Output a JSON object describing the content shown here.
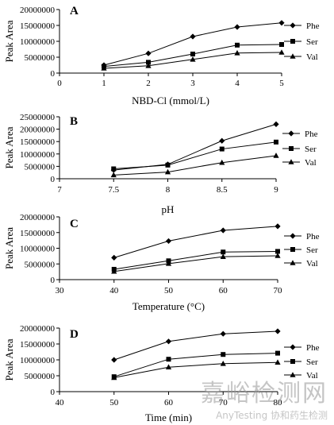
{
  "chart_data": [
    {
      "type": "line",
      "panel_label": "A",
      "xlabel": "NBD-Cl (mmol/L)",
      "ylabel": "Peak Area",
      "x": [
        1,
        2,
        3,
        4,
        5
      ],
      "xlim": [
        0,
        5
      ],
      "ylim": [
        0,
        20000000
      ],
      "xticks": [
        "0",
        "1",
        "2",
        "3",
        "4",
        "5"
      ],
      "yticks": [
        "0",
        "5000000",
        "10000000",
        "15000000",
        "20000000"
      ],
      "legend": "right",
      "series": [
        {
          "name": "Phe",
          "marker": "diamond",
          "values": [
            2500000,
            6200000,
            11500000,
            14500000,
            15800000
          ]
        },
        {
          "name": "Ser",
          "marker": "square",
          "values": [
            2100000,
            3400000,
            6000000,
            8800000,
            9000000
          ]
        },
        {
          "name": "Val",
          "marker": "triangle",
          "values": [
            1500000,
            2300000,
            4300000,
            6300000,
            6500000
          ]
        }
      ]
    },
    {
      "type": "line",
      "panel_label": "B",
      "xlabel": "pH",
      "ylabel": "Peak Area",
      "x": [
        7.5,
        8,
        8.5,
        9
      ],
      "xlim": [
        7,
        9
      ],
      "ylim": [
        0,
        25000000
      ],
      "xticks": [
        "7",
        "7.5",
        "8",
        "8.5",
        "9"
      ],
      "yticks": [
        "0",
        "5000000",
        "10000000",
        "15000000",
        "20000000",
        "25000000"
      ],
      "legend": "right",
      "series": [
        {
          "name": "Phe",
          "marker": "diamond",
          "values": [
            3500000,
            5800000,
            15300000,
            22000000
          ]
        },
        {
          "name": "Ser",
          "marker": "square",
          "values": [
            4000000,
            5500000,
            12000000,
            14800000
          ]
        },
        {
          "name": "Val",
          "marker": "triangle",
          "values": [
            1500000,
            2700000,
            6500000,
            9300000
          ]
        }
      ]
    },
    {
      "type": "line",
      "panel_label": "C",
      "xlabel": "Temperature (°C)",
      "ylabel": "Peak Area",
      "x": [
        40,
        50,
        60,
        70
      ],
      "xlim": [
        30,
        70
      ],
      "ylim": [
        0,
        20000000
      ],
      "xticks": [
        "30",
        "40",
        "50",
        "60",
        "70"
      ],
      "yticks": [
        "0",
        "5000000",
        "10000000",
        "15000000",
        "20000000"
      ],
      "legend": "right",
      "series": [
        {
          "name": "Phe",
          "marker": "diamond",
          "values": [
            7000000,
            12300000,
            15700000,
            17000000
          ]
        },
        {
          "name": "Ser",
          "marker": "square",
          "values": [
            3300000,
            6000000,
            8800000,
            9000000
          ]
        },
        {
          "name": "Val",
          "marker": "triangle",
          "values": [
            2600000,
            5100000,
            7300000,
            7600000
          ]
        }
      ]
    },
    {
      "type": "line",
      "panel_label": "D",
      "xlabel": "Time (min)",
      "ylabel": "Peak Area",
      "x": [
        50,
        60,
        70,
        80
      ],
      "xlim": [
        40,
        80
      ],
      "ylim": [
        0,
        20000000
      ],
      "xticks": [
        "40",
        "50",
        "60",
        "70",
        "80"
      ],
      "yticks": [
        "0",
        "5000000",
        "10000000",
        "15000000",
        "20000000"
      ],
      "legend": "right",
      "series": [
        {
          "name": "Phe",
          "marker": "diamond",
          "values": [
            10000000,
            15800000,
            18200000,
            19000000
          ]
        },
        {
          "name": "Ser",
          "marker": "square",
          "values": [
            4700000,
            10200000,
            11700000,
            12100000
          ]
        },
        {
          "name": "Val",
          "marker": "triangle",
          "values": [
            4400000,
            7700000,
            8800000,
            9200000
          ]
        }
      ]
    }
  ],
  "watermark": {
    "main": "嘉峪检测网",
    "sub": "AnyTesting  协和药生检测"
  }
}
